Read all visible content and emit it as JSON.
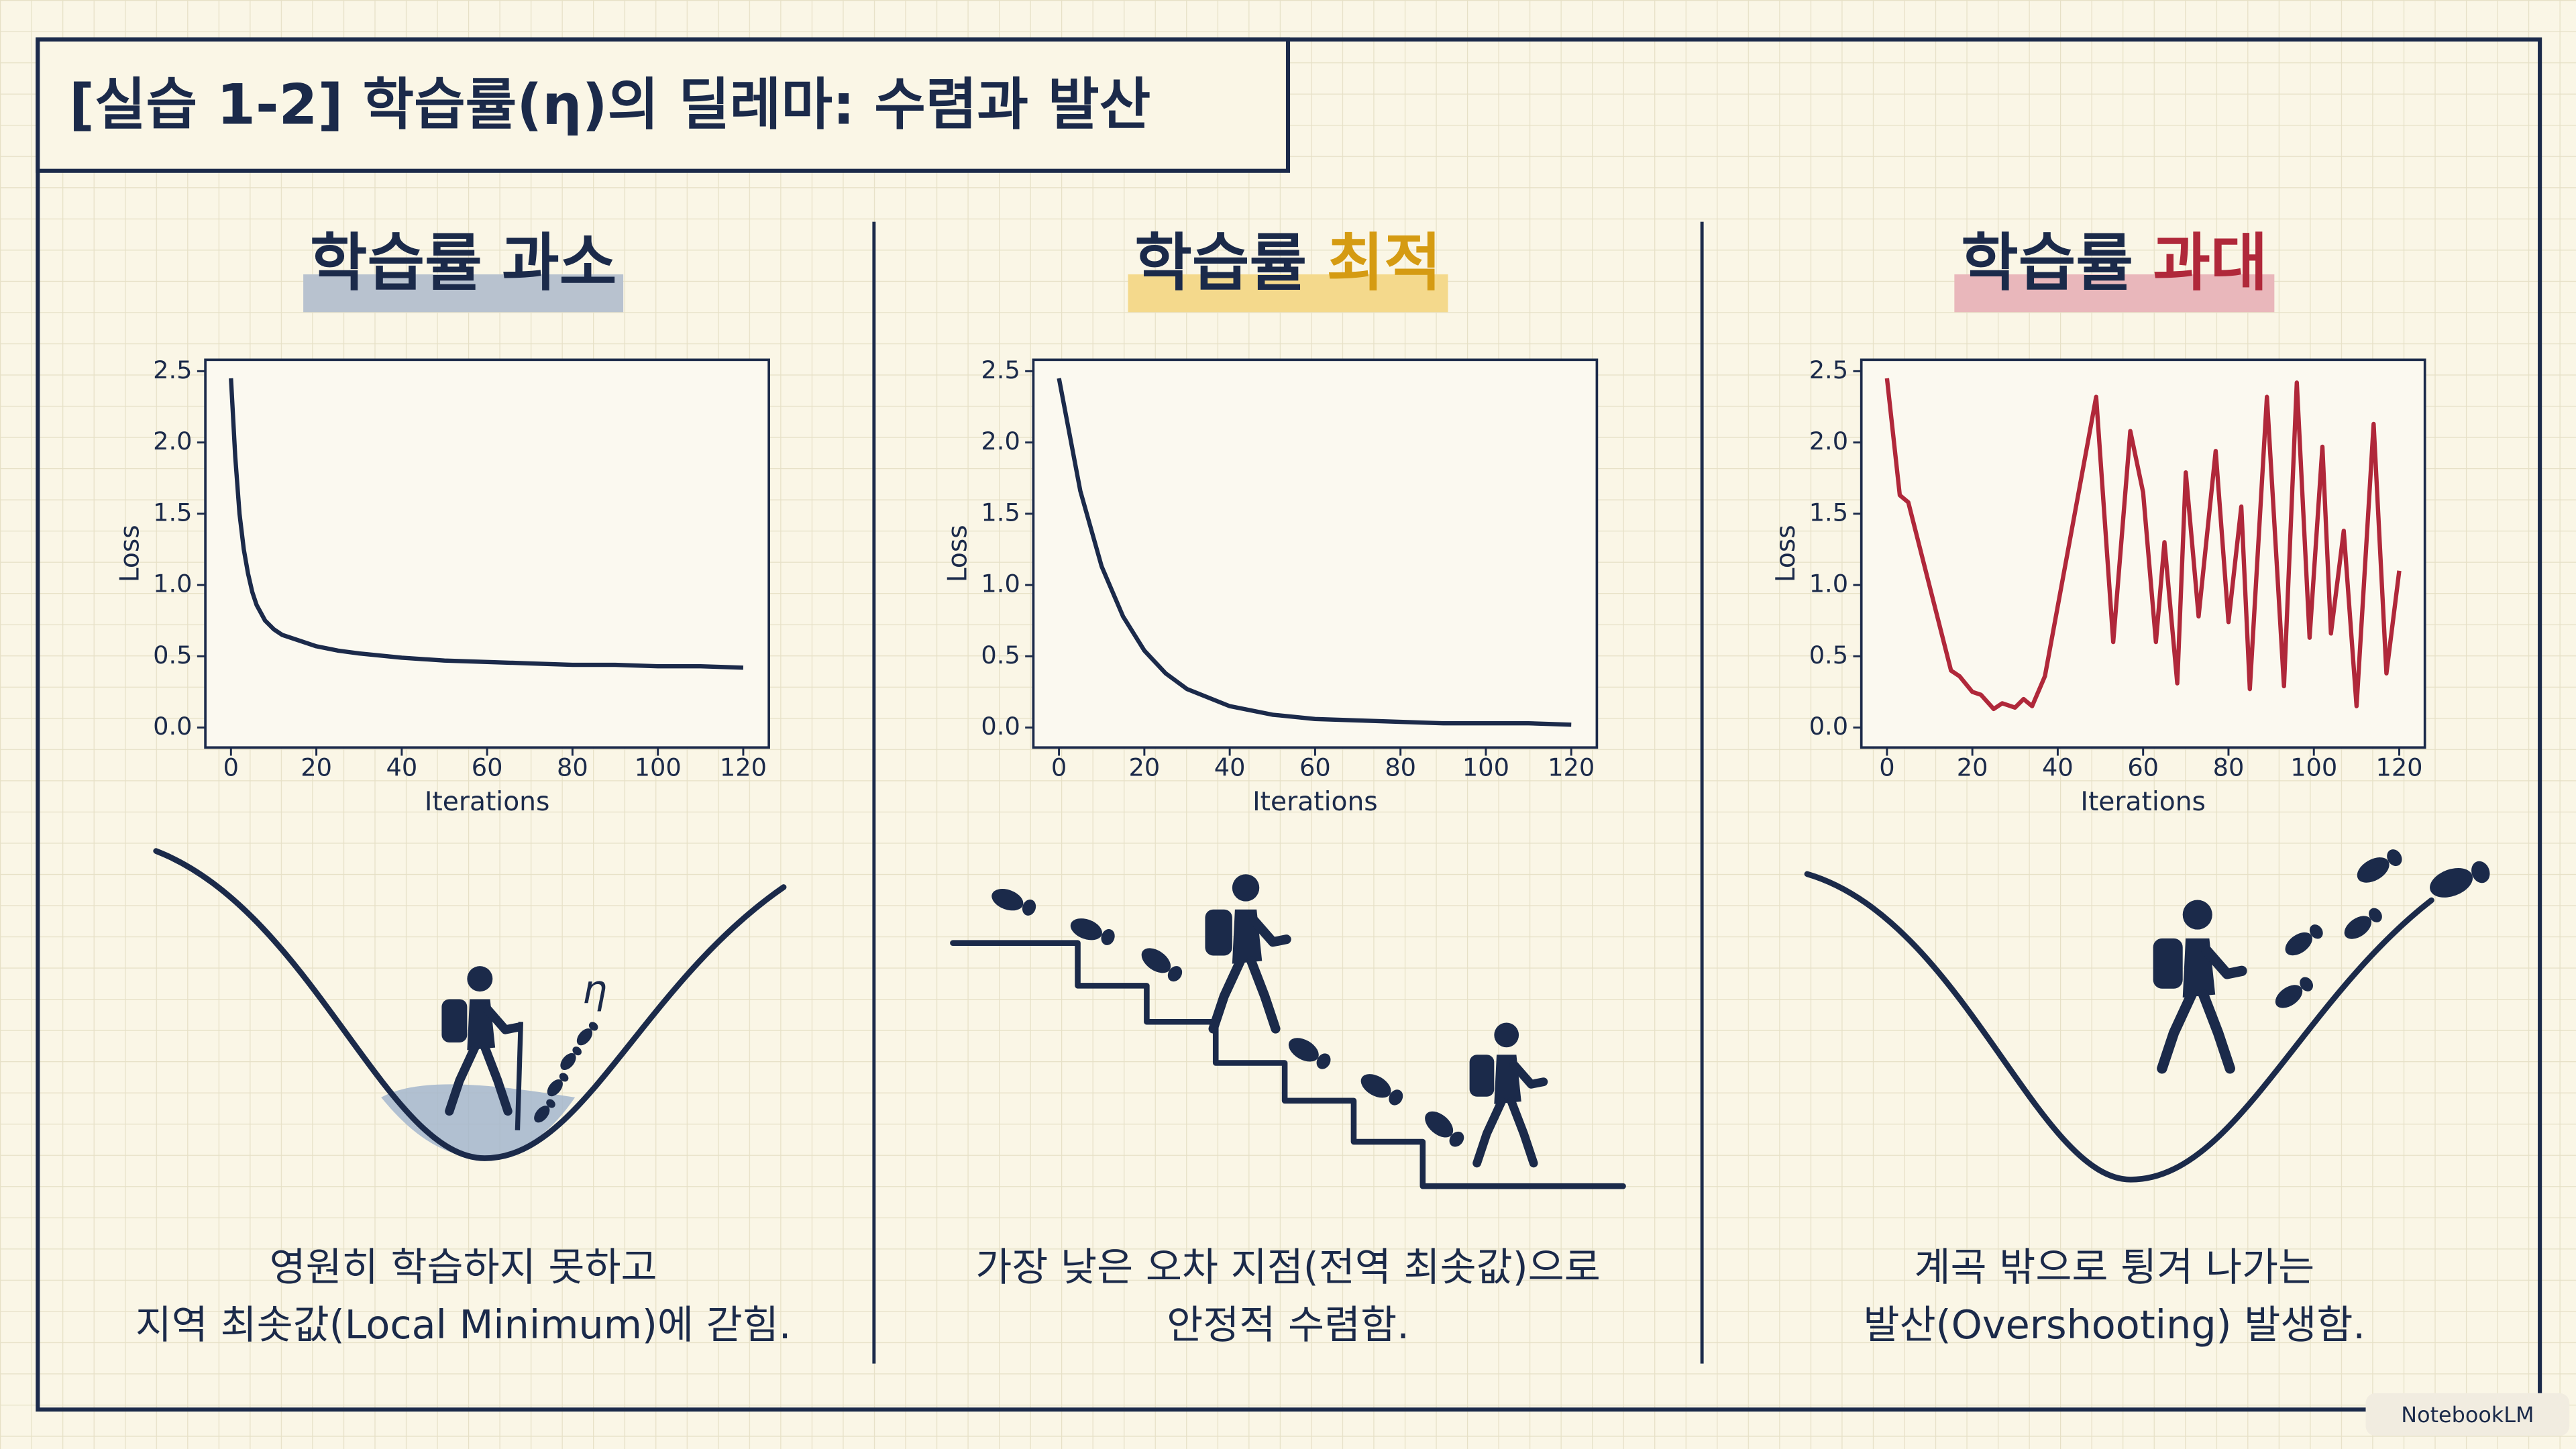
{
  "title": "[실습 1-2] 학습률(η)의 딜레마: 수렴과 발산",
  "panels": [
    {
      "heading": "학습률",
      "emphasis": "과소",
      "caption": [
        "영원히 학습하지 못하고",
        "지역 최솟값(Local Minimum)에 갇힘."
      ],
      "illustration_symbol": "η"
    },
    {
      "heading": "학습률",
      "emphasis": "최적",
      "caption": [
        "가장 낮은 오차 지점(전역 최솟값)으로",
        "안정적 수렴함."
      ]
    },
    {
      "heading": "학습률",
      "emphasis": "과대",
      "caption": [
        "계곡 밖으로 튕겨 나가는",
        "발산(Overshooting) 발생함."
      ]
    }
  ],
  "watermark": "NotebookLM",
  "chart_data": [
    {
      "type": "line",
      "xlabel": "Iterations",
      "ylabel": "Loss",
      "color": "#1b2a4a",
      "x": [
        0,
        1,
        2,
        3,
        4,
        5,
        6,
        8,
        10,
        12,
        15,
        20,
        25,
        30,
        40,
        50,
        60,
        70,
        80,
        90,
        100,
        110,
        120
      ],
      "values": [
        2.45,
        1.9,
        1.5,
        1.25,
        1.08,
        0.95,
        0.86,
        0.75,
        0.69,
        0.65,
        0.62,
        0.57,
        0.54,
        0.52,
        0.49,
        0.47,
        0.46,
        0.45,
        0.44,
        0.44,
        0.43,
        0.43,
        0.42
      ],
      "xlim": [
        -6,
        126
      ],
      "ylim": [
        -0.14,
        2.58
      ],
      "xticks": [
        0,
        20,
        40,
        60,
        80,
        100,
        120
      ],
      "yticks": [
        {
          "value": 0,
          "label": "0.0"
        },
        0.5,
        {
          "value": 1,
          "label": "1.0"
        },
        1.5,
        {
          "value": 2,
          "label": "2.0"
        },
        2.5
      ]
    },
    {
      "type": "line",
      "xlabel": "Iterations",
      "ylabel": "Loss",
      "color": "#1b2a4a",
      "x": [
        0,
        5,
        10,
        15,
        20,
        25,
        30,
        40,
        50,
        60,
        70,
        80,
        90,
        100,
        110,
        120
      ],
      "values": [
        2.45,
        1.66,
        1.13,
        0.78,
        0.54,
        0.38,
        0.27,
        0.15,
        0.09,
        0.06,
        0.05,
        0.04,
        0.03,
        0.03,
        0.03,
        0.02
      ],
      "xlim": [
        -6,
        126
      ],
      "ylim": [
        -0.14,
        2.58
      ],
      "xticks": [
        0,
        20,
        40,
        60,
        80,
        100,
        120
      ],
      "yticks": [
        {
          "value": 0,
          "label": "0.0"
        },
        0.5,
        {
          "value": 1,
          "label": "1.0"
        },
        1.5,
        {
          "value": 2,
          "label": "2.0"
        },
        2.5
      ]
    },
    {
      "type": "line",
      "xlabel": "Iterations",
      "ylabel": "Loss",
      "color": "#b0283a",
      "x": [
        0,
        3,
        5,
        15,
        17,
        20,
        22,
        25,
        27,
        30,
        32,
        34,
        37,
        49,
        53,
        57,
        60,
        63,
        65,
        68,
        70,
        73,
        77,
        80,
        83,
        85,
        89,
        93,
        96,
        99,
        102,
        104,
        107,
        110,
        114,
        117,
        120
      ],
      "values": [
        2.45,
        1.63,
        1.58,
        0.4,
        0.36,
        0.25,
        0.23,
        0.13,
        0.17,
        0.14,
        0.2,
        0.15,
        0.36,
        2.32,
        0.6,
        2.08,
        1.65,
        0.6,
        1.3,
        0.31,
        1.79,
        0.78,
        1.94,
        0.74,
        1.55,
        0.27,
        2.32,
        0.29,
        2.42,
        0.63,
        1.97,
        0.66,
        1.38,
        0.15,
        2.13,
        0.38,
        1.1
      ],
      "xlim": [
        -6,
        126
      ],
      "ylim": [
        -0.14,
        2.58
      ],
      "xticks": [
        0,
        20,
        40,
        60,
        80,
        100,
        120
      ],
      "yticks": [
        {
          "value": 0,
          "label": "0.0"
        },
        0.5,
        {
          "value": 1,
          "label": "1.0"
        },
        1.5,
        {
          "value": 2,
          "label": "2.0"
        },
        2.5
      ]
    }
  ]
}
